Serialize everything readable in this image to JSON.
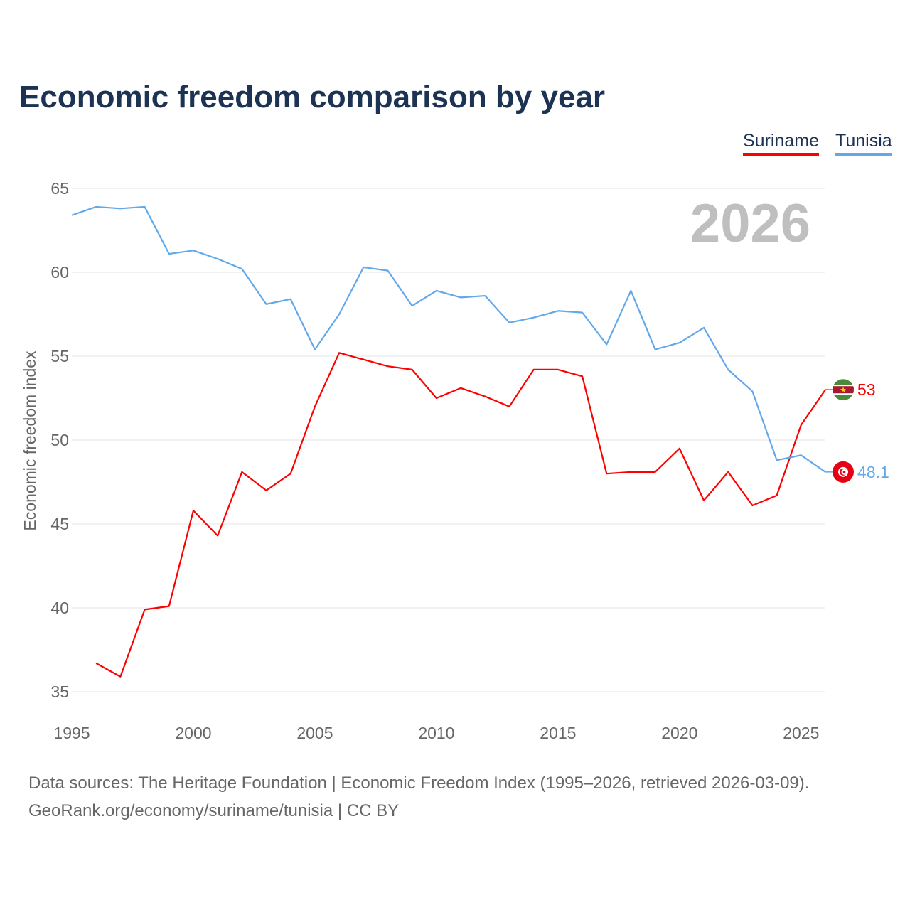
{
  "chart_data": {
    "type": "line",
    "title": "Economic freedom comparison by year",
    "xlabel": "",
    "ylabel": "Economic freedom index",
    "xlim": [
      1995,
      2026
    ],
    "ylim": [
      35,
      65
    ],
    "yticks": [
      35,
      40,
      45,
      50,
      55,
      60,
      65
    ],
    "xticks": [
      1995,
      2000,
      2005,
      2010,
      2015,
      2020,
      2025
    ],
    "grid": true,
    "legend_placement": "top-right",
    "year_watermark": "2026",
    "series": [
      {
        "name": "Suriname",
        "color": "#ff0000",
        "end_label": "53",
        "flag": "suriname-flag",
        "x": [
          1996,
          1997,
          1998,
          1999,
          2000,
          2001,
          2002,
          2003,
          2004,
          2005,
          2006,
          2007,
          2008,
          2009,
          2010,
          2011,
          2012,
          2013,
          2014,
          2015,
          2016,
          2017,
          2018,
          2019,
          2020,
          2021,
          2022,
          2023,
          2024,
          2025,
          2026
        ],
        "values": [
          36.7,
          35.9,
          39.9,
          40.1,
          45.8,
          44.3,
          48.1,
          47.0,
          48.0,
          52.0,
          55.2,
          54.8,
          54.4,
          54.2,
          52.5,
          53.1,
          52.6,
          52.0,
          54.2,
          54.2,
          53.8,
          48.0,
          48.1,
          48.1,
          49.5,
          46.4,
          48.1,
          46.1,
          46.7,
          50.9,
          53.0
        ]
      },
      {
        "name": "Tunisia",
        "color": "#62a8ea",
        "end_label": "48.1",
        "flag": "tunisia-flag",
        "x": [
          1995,
          1996,
          1997,
          1998,
          1999,
          2000,
          2001,
          2002,
          2003,
          2004,
          2005,
          2006,
          2007,
          2008,
          2009,
          2010,
          2011,
          2012,
          2013,
          2014,
          2015,
          2016,
          2017,
          2018,
          2019,
          2020,
          2021,
          2022,
          2023,
          2024,
          2025,
          2026
        ],
        "values": [
          63.4,
          63.9,
          63.8,
          63.9,
          61.1,
          61.3,
          60.8,
          60.2,
          58.1,
          58.4,
          55.4,
          57.5,
          60.3,
          60.1,
          58.0,
          58.9,
          58.5,
          58.6,
          57.0,
          57.3,
          57.7,
          57.6,
          55.7,
          58.9,
          55.4,
          55.8,
          56.7,
          54.2,
          52.9,
          48.8,
          49.1,
          48.1
        ]
      }
    ]
  },
  "source_line1": "Data sources: The Heritage Foundation | Economic Freedom Index (1995–2026, retrieved 2026-03-09).",
  "source_line2": "GeoRank.org/economy/suriname/tunisia | CC BY"
}
